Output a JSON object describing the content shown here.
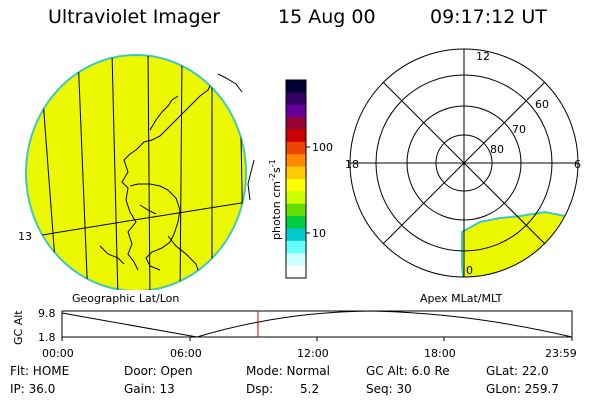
{
  "header": {
    "title": "Ultraviolet Imager",
    "date": "15 Aug 00",
    "time": "09:17:12 UT"
  },
  "colorbar": {
    "unit_label": "photon cm",
    "unit_sup1": "-2",
    "unit_s": "s",
    "unit_sup2": "-1",
    "tick_100": "100",
    "tick_10": "10",
    "colors": [
      "#000033",
      "#330066",
      "#660099",
      "#990033",
      "#cc0000",
      "#ee4400",
      "#ff8800",
      "#ffcc00",
      "#ffff00",
      "#ccff00",
      "#66dd00",
      "#00cc44",
      "#00cccc",
      "#66ffff",
      "#ccffff",
      "#ffffff"
    ]
  },
  "geo_panel": {
    "label": "Geographic Lat/Lon",
    "lat_label": "13",
    "fill_color": "#ecf800",
    "edge_color": "#40c8c0"
  },
  "apex_panel": {
    "label": "Apex MLat/MLT",
    "mlt_12": "12",
    "mlt_18": "18",
    "mlt_6": "6",
    "mlt_0": "0",
    "lat_60": "60",
    "lat_70": "70",
    "lat_80": "80"
  },
  "altitude_plot": {
    "ylabel": "GC Alt",
    "ymax": "9.8",
    "ymin": "1.8",
    "x_ticks": [
      "00:00",
      "06:00",
      "12:00",
      "18:00",
      "23:59"
    ],
    "marker_color": "#cc0000"
  },
  "info": {
    "flt": "Flt: HOME",
    "ip": "IP: 36.0",
    "door": "Door: Open",
    "gain": "Gain: 13",
    "mode": "Mode: Normal",
    "dsp_label": "Dsp:",
    "dsp_value": "5.2",
    "gcalt": "GC Alt: 6.0 Re",
    "seq": "Seq: 30",
    "glat": "GLat:  22.0",
    "glon": "GLon: 259.7"
  }
}
